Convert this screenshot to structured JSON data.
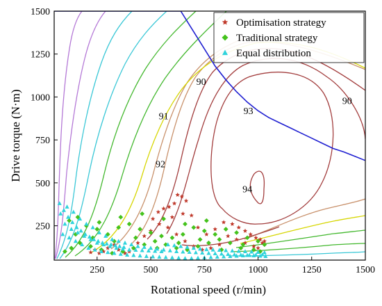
{
  "chart_data": {
    "type": "scatter",
    "title": "",
    "xlabel": "Rotational speed (r/min)",
    "ylabel": "Drive torque (N·m)",
    "xlim": [
      50,
      1500
    ],
    "ylim": [
      50,
      1500
    ],
    "xticks": [
      "250",
      "500",
      "750",
      "1000",
      "1250",
      "1500"
    ],
    "yticks": [
      "250",
      "500",
      "750",
      "1000",
      "1250",
      "1500"
    ],
    "xtick_values": [
      250,
      500,
      750,
      1000,
      1250,
      1500
    ],
    "ytick_values": [
      250,
      500,
      750,
      1000,
      1250,
      1500
    ],
    "grid": false,
    "legend_position": "top-right",
    "series": [
      {
        "name": "Optimisation strategy",
        "marker": "star",
        "color": "#c0392b",
        "points": [
          [
            510,
            290
          ],
          [
            535,
            330
          ],
          [
            560,
            350
          ],
          [
            585,
            360
          ],
          [
            610,
            380
          ],
          [
            625,
            430
          ],
          [
            645,
            420
          ],
          [
            665,
            395
          ],
          [
            600,
            300
          ],
          [
            650,
            320
          ],
          [
            690,
            310
          ],
          [
            720,
            240
          ],
          [
            760,
            200
          ],
          [
            800,
            230
          ],
          [
            840,
            270
          ],
          [
            880,
            260
          ],
          [
            910,
            240
          ],
          [
            940,
            220
          ],
          [
            965,
            200
          ],
          [
            990,
            180
          ],
          [
            1010,
            170
          ],
          [
            1030,
            160
          ],
          [
            980,
            130
          ],
          [
            940,
            150
          ],
          [
            900,
            170
          ],
          [
            860,
            190
          ],
          [
            820,
            140
          ],
          [
            780,
            120
          ],
          [
            740,
            110
          ],
          [
            700,
            130
          ],
          [
            660,
            160
          ],
          [
            620,
            200
          ],
          [
            580,
            240
          ],
          [
            540,
            260
          ],
          [
            500,
            220
          ],
          [
            470,
            190
          ],
          [
            440,
            150
          ],
          [
            420,
            120
          ],
          [
            400,
            100
          ],
          [
            380,
            90
          ],
          [
            350,
            110
          ],
          [
            330,
            140
          ],
          [
            300,
            120
          ],
          [
            280,
            100
          ],
          [
            260,
            90
          ],
          [
            240,
            110
          ],
          [
            220,
            95
          ],
          [
            1000,
            120
          ],
          [
            1020,
            150
          ]
        ]
      },
      {
        "name": "Traditional strategy",
        "marker": "diamond",
        "color": "#44c21c",
        "points": [
          [
            120,
            280
          ],
          [
            160,
            300
          ],
          [
            200,
            250
          ],
          [
            250,
            230
          ],
          [
            300,
            200
          ],
          [
            350,
            240
          ],
          [
            400,
            260
          ],
          [
            450,
            230
          ],
          [
            500,
            210
          ],
          [
            550,
            190
          ],
          [
            600,
            180
          ],
          [
            650,
            200
          ],
          [
            700,
            240
          ],
          [
            750,
            220
          ],
          [
            800,
            200
          ],
          [
            850,
            230
          ],
          [
            900,
            210
          ],
          [
            950,
            180
          ],
          [
            1000,
            160
          ],
          [
            1030,
            140
          ],
          [
            980,
            110
          ],
          [
            920,
            120
          ],
          [
            870,
            150
          ],
          [
            820,
            170
          ],
          [
            770,
            150
          ],
          [
            720,
            130
          ],
          [
            670,
            110
          ],
          [
            620,
            120
          ],
          [
            570,
            140
          ],
          [
            520,
            160
          ],
          [
            470,
            140
          ],
          [
            420,
            120
          ],
          [
            370,
            100
          ],
          [
            320,
            90
          ],
          [
            270,
            110
          ],
          [
            220,
            130
          ],
          [
            170,
            150
          ],
          [
            130,
            120
          ],
          [
            100,
            100
          ],
          [
            150,
            200
          ],
          [
            230,
            180
          ],
          [
            330,
            160
          ],
          [
            430,
            180
          ],
          [
            530,
            120
          ],
          [
            630,
            150
          ],
          [
            730,
            170
          ],
          [
            830,
            110
          ],
          [
            930,
            140
          ],
          [
            1010,
            100
          ],
          [
            260,
            270
          ],
          [
            360,
            300
          ],
          [
            460,
            320
          ],
          [
            560,
            290
          ],
          [
            660,
            260
          ],
          [
            760,
            280
          ]
        ]
      },
      {
        "name": "Equal distribution",
        "marker": "triangle",
        "color": "#2fd3dc",
        "points": [
          [
            80,
            320
          ],
          [
            110,
            360
          ],
          [
            140,
            330
          ],
          [
            170,
            290
          ],
          [
            200,
            260
          ],
          [
            230,
            240
          ],
          [
            260,
            210
          ],
          [
            290,
            190
          ],
          [
            320,
            170
          ],
          [
            350,
            160
          ],
          [
            380,
            150
          ],
          [
            410,
            140
          ],
          [
            440,
            130
          ],
          [
            470,
            125
          ],
          [
            500,
            120
          ],
          [
            530,
            115
          ],
          [
            560,
            110
          ],
          [
            590,
            105
          ],
          [
            620,
            100
          ],
          [
            650,
            98
          ],
          [
            680,
            96
          ],
          [
            710,
            94
          ],
          [
            740,
            92
          ],
          [
            770,
            90
          ],
          [
            800,
            88
          ],
          [
            830,
            86
          ],
          [
            860,
            84
          ],
          [
            890,
            82
          ],
          [
            920,
            80
          ],
          [
            950,
            78
          ],
          [
            980,
            76
          ],
          [
            1010,
            74
          ],
          [
            1035,
            72
          ],
          [
            90,
            200
          ],
          [
            120,
            180
          ],
          [
            150,
            160
          ],
          [
            180,
            140
          ],
          [
            210,
            120
          ],
          [
            240,
            110
          ],
          [
            270,
            100
          ],
          [
            300,
            95
          ],
          [
            330,
            90
          ],
          [
            360,
            85
          ],
          [
            390,
            80
          ],
          [
            420,
            78
          ],
          [
            450,
            75
          ],
          [
            480,
            72
          ],
          [
            510,
            70
          ],
          [
            540,
            68
          ],
          [
            570,
            66
          ],
          [
            600,
            64
          ],
          [
            630,
            62
          ],
          [
            660,
            60
          ],
          [
            690,
            60
          ],
          [
            720,
            62
          ],
          [
            750,
            64
          ],
          [
            780,
            66
          ],
          [
            810,
            68
          ],
          [
            840,
            70
          ],
          [
            870,
            72
          ],
          [
            900,
            74
          ],
          [
            930,
            76
          ],
          [
            960,
            78
          ],
          [
            990,
            80
          ],
          [
            1020,
            82
          ],
          [
            100,
            260
          ],
          [
            130,
            230
          ],
          [
            160,
            210
          ],
          [
            190,
            190
          ],
          [
            220,
            170
          ],
          [
            250,
            150
          ],
          [
            280,
            140
          ],
          [
            310,
            130
          ],
          [
            340,
            120
          ],
          [
            370,
            115
          ],
          [
            400,
            110
          ],
          [
            430,
            108
          ],
          [
            460,
            106
          ],
          [
            490,
            104
          ],
          [
            520,
            102
          ],
          [
            550,
            100
          ],
          [
            580,
            140
          ],
          [
            610,
            135
          ],
          [
            640,
            130
          ],
          [
            670,
            125
          ],
          [
            700,
            120
          ],
          [
            730,
            115
          ],
          [
            760,
            112
          ],
          [
            790,
            110
          ],
          [
            820,
            108
          ],
          [
            850,
            106
          ],
          [
            880,
            104
          ],
          [
            910,
            102
          ],
          [
            940,
            100
          ],
          [
            970,
            98
          ],
          [
            1000,
            96
          ],
          [
            1030,
            94
          ],
          [
            75,
            380
          ],
          [
            95,
            340
          ],
          [
            115,
            300
          ],
          [
            135,
            270
          ],
          [
            155,
            240
          ],
          [
            175,
            220
          ],
          [
            195,
            200
          ],
          [
            215,
            185
          ],
          [
            235,
            170
          ],
          [
            255,
            160
          ],
          [
            275,
            150
          ],
          [
            295,
            145
          ],
          [
            315,
            140
          ],
          [
            335,
            135
          ],
          [
            355,
            130
          ],
          [
            375,
            125
          ]
        ]
      }
    ],
    "external_characteristic": [
      [
        50,
        1500
      ],
      [
        640,
        1500
      ],
      [
        700,
        1380
      ],
      [
        750,
        1280
      ],
      [
        800,
        1180
      ],
      [
        850,
        1100
      ],
      [
        900,
        1030
      ],
      [
        950,
        970
      ],
      [
        1000,
        920
      ],
      [
        1050,
        880
      ],
      [
        1100,
        850
      ],
      [
        1150,
        820
      ],
      [
        1200,
        790
      ],
      [
        1250,
        760
      ],
      [
        1300,
        730
      ],
      [
        1350,
        700
      ],
      [
        1400,
        680
      ],
      [
        1450,
        655
      ],
      [
        1500,
        630
      ]
    ],
    "efficiency_labels": [
      {
        "text": "90",
        "x": 735,
        "y": 1070
      },
      {
        "text": "90",
        "x": 1415,
        "y": 960
      },
      {
        "text": "91",
        "x": 560,
        "y": 870
      },
      {
        "text": "92",
        "x": 545,
        "y": 590
      },
      {
        "text": "93",
        "x": 955,
        "y": 900
      },
      {
        "text": "94",
        "x": 950,
        "y": 445
      }
    ],
    "colors": {
      "external_characteristic": "#1f1fd1",
      "contour_dark": "#a23c3c",
      "contour_tan": "#c8906a",
      "contour_yellow": "#d6d600",
      "contour_green": "#43b82e",
      "contour_cyan": "#39c7d6",
      "contour_violet": "#b478d6"
    }
  }
}
